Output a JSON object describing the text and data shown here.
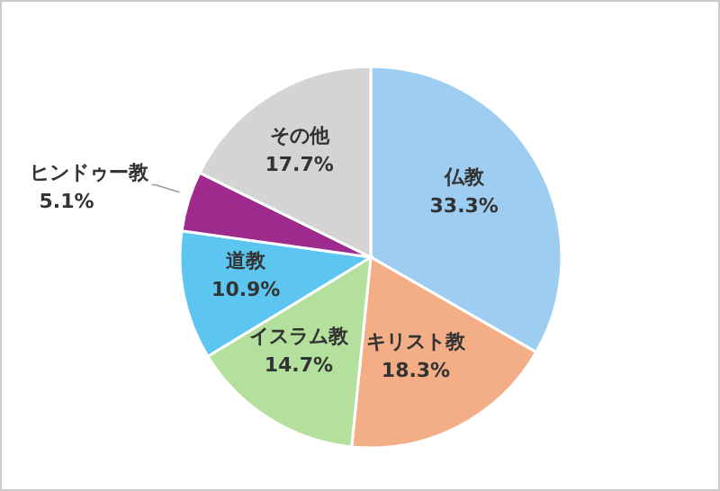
{
  "chart_data": {
    "type": "pie",
    "categories": [
      "仏教",
      "キリスト教",
      "イスラム教",
      "道教",
      "ヒンドゥー教",
      "その他"
    ],
    "values": [
      33.3,
      18.3,
      14.7,
      10.9,
      5.1,
      17.7
    ],
    "value_labels": [
      "33.3%",
      "18.3%",
      "14.7%",
      "10.9%",
      "5.1%",
      "17.7%"
    ],
    "colors": [
      "#9dcef2",
      "#f3ae87",
      "#b3e09c",
      "#5cc6f0",
      "#9e2a8e",
      "#d4d4d4"
    ],
    "legend": false
  }
}
